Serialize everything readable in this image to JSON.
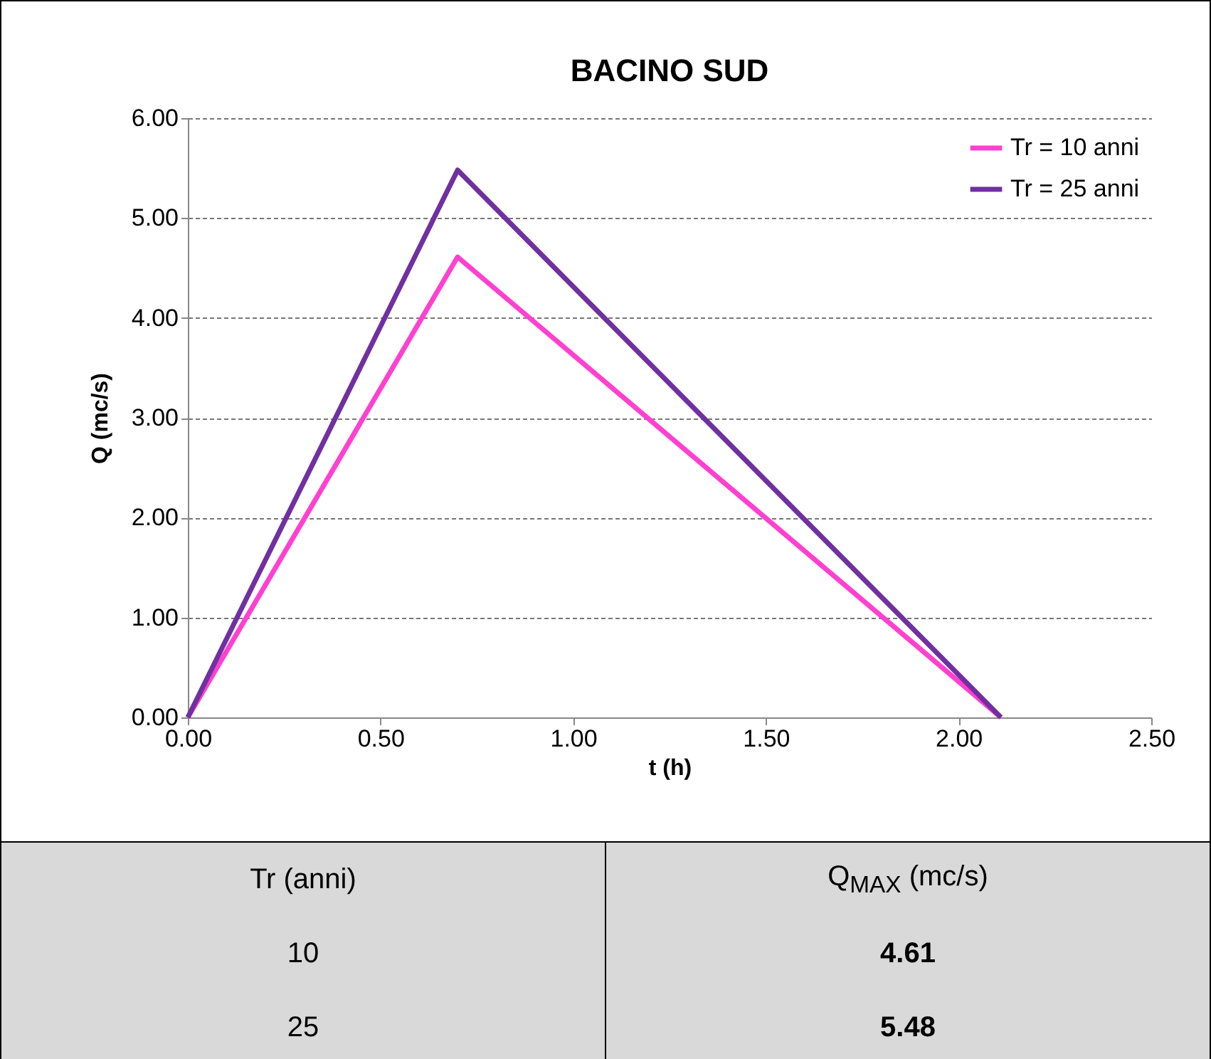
{
  "chart_data": {
    "type": "line",
    "title": "BACINO SUD",
    "xlabel": "t (h)",
    "ylabel": "Q (mc/s)",
    "x": [
      0,
      0.7,
      2.11
    ],
    "series": [
      {
        "name": "Tr = 10 anni",
        "color": "#ff40d0",
        "values": [
          0,
          4.61,
          0
        ]
      },
      {
        "name": "Tr = 25 anni",
        "color": "#7030a0",
        "values": [
          0,
          5.48,
          0
        ]
      }
    ],
    "xlim": [
      0,
      2.5
    ],
    "xticks": [
      {
        "value": 0,
        "label": "0.00"
      },
      {
        "value": 0.5,
        "label": "0.50"
      },
      {
        "value": 1,
        "label": "1.00"
      },
      {
        "value": 1.5,
        "label": "1.50"
      },
      {
        "value": 2,
        "label": "2.00"
      },
      {
        "value": 2.5,
        "label": "2.50"
      }
    ],
    "ylim": [
      0,
      6
    ],
    "yticks": [
      {
        "value": 0,
        "label": "0.00"
      },
      {
        "value": 1,
        "label": "1.00"
      },
      {
        "value": 2,
        "label": "2.00"
      },
      {
        "value": 3,
        "label": "3.00"
      },
      {
        "value": 4,
        "label": "4.00"
      },
      {
        "value": 5,
        "label": "5.00"
      },
      {
        "value": 6,
        "label": "6.00"
      }
    ],
    "grid": "y",
    "legend": "top right",
    "marker": "none",
    "line_style": "solid",
    "annotations": [
      "Tr (anni)",
      "Q$_{MAX}$ (mc/s)",
      "10",
      "4.61",
      "25",
      "5.48"
    ]
  }
}
